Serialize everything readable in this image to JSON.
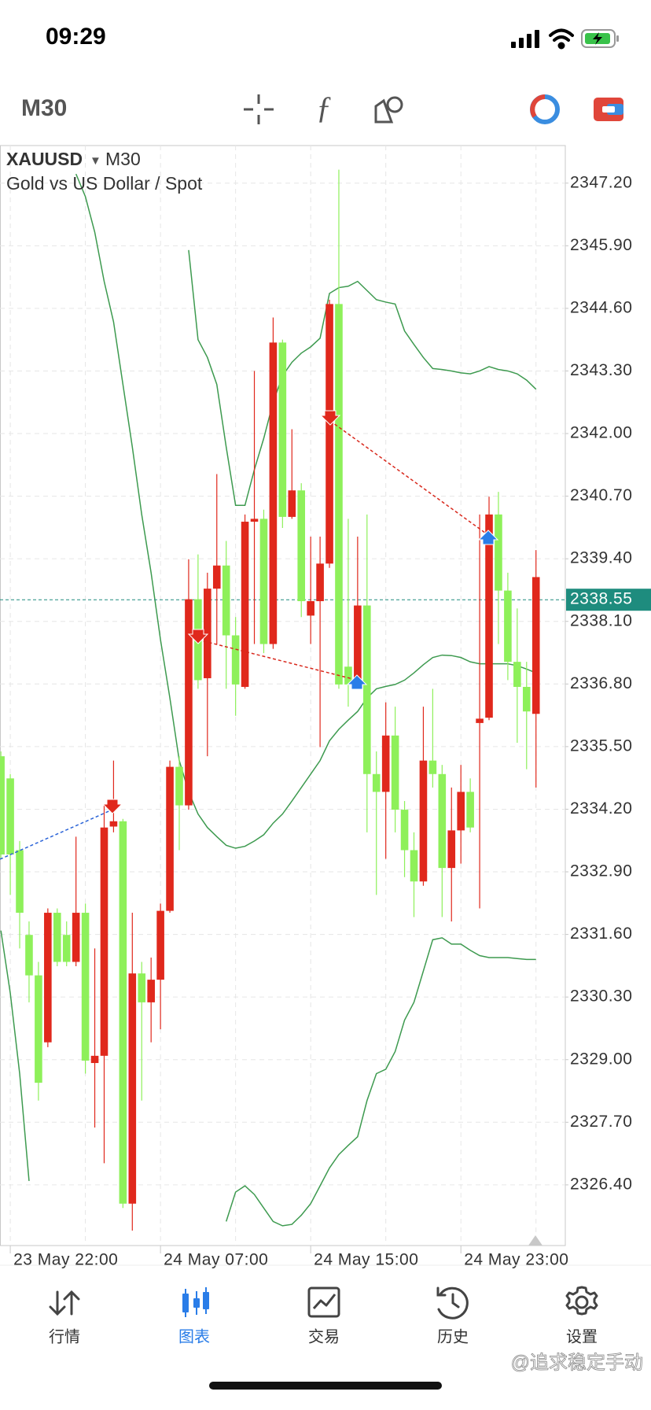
{
  "status_bar": {
    "time": "09:29"
  },
  "toolbar": {
    "timeframe": "M30"
  },
  "chart_data": {
    "type": "candlestick",
    "symbol": "XAUUSD",
    "timeframe": "M30",
    "description": "Gold vs US Dollar / Spot",
    "bull_color": "#8ef05a",
    "bear_color": "#e0281c",
    "band_color": "#3d9a4f",
    "grid": true,
    "ylim": [
      2325.14,
      2347.98
    ],
    "yticks": [
      {
        "value": 2347.2,
        "label": "2347.20"
      },
      {
        "value": 2345.9,
        "label": "2345.90"
      },
      {
        "value": 2344.6,
        "label": "2344.60"
      },
      {
        "value": 2343.3,
        "label": "2343.30"
      },
      {
        "value": 2342,
        "label": "2342.00"
      },
      {
        "value": 2340.7,
        "label": "2340.70"
      },
      {
        "value": 2339.4,
        "label": "2339.40"
      },
      {
        "value": 2338.1,
        "label": "2338.10"
      },
      {
        "value": 2336.8,
        "label": "2336.80"
      },
      {
        "value": 2335.5,
        "label": "2335.50"
      },
      {
        "value": 2334.2,
        "label": "2334.20"
      },
      {
        "value": 2332.9,
        "label": "2332.90"
      },
      {
        "value": 2331.6,
        "label": "2331.60"
      },
      {
        "value": 2330.3,
        "label": "2330.30"
      },
      {
        "value": 2329,
        "label": "2329.00"
      },
      {
        "value": 2327.7,
        "label": "2327.70"
      },
      {
        "value": 2326.4,
        "label": "2326.40"
      }
    ],
    "current_price": {
      "value": 2338.55,
      "label": "2338.55"
    },
    "categories": [
      null,
      "23 May 22:00",
      null,
      null,
      null,
      null,
      null,
      null,
      null,
      null,
      null,
      null,
      null,
      null,
      null,
      null,
      null,
      "24 May 07:00",
      null,
      null,
      null,
      null,
      null,
      null,
      null,
      null,
      null,
      null,
      null,
      null,
      null,
      null,
      null,
      "24 May 15:00",
      null,
      null,
      null,
      null,
      null,
      null,
      null,
      null,
      null,
      null,
      null,
      null,
      null,
      null,
      null,
      "24 May 23:00",
      null,
      null,
      null,
      null,
      null,
      null,
      null,
      null
    ],
    "open": [
      2333.26,
      2333.26,
      2332.05,
      2330.75,
      2328.52,
      2332.05,
      2331.03,
      2331.03,
      2332.05,
      2328.98,
      2329.08,
      2333.82,
      2333.95,
      2326.01,
      2330.79,
      2330.19,
      2330.66,
      2332.09,
      2335.08,
      2334.28,
      2338.56,
      2336.88,
      2338.78,
      2339.26,
      2337.81,
      2336.79,
      2340.17,
      2340.23,
      2337.63,
      2343.89,
      2340.27,
      2340.82,
      2338.52,
      2338.52,
      2339.3,
      2344.69,
      2336.79,
      2336.79,
      2338.43,
      2334.93,
      2334.56,
      2335.73,
      2334.19,
      2333.35,
      2332.7,
      2335.21,
      2334.93,
      2332.98,
      2333.76,
      2334.56,
      2333.82,
      2336.08,
      2340.32,
      2338.74,
      2337.26,
      2336.74,
      2336.23,
      2339.02
    ],
    "high": [
      2335.4,
      2334.93,
      2333.54,
      2331.87,
      2331.03,
      2332.14,
      2332.14,
      2331.87,
      2333.63,
      2332.24,
      2331.31,
      2334.28,
      2335.21,
      2334.0,
      2332.05,
      2331.03,
      2331.12,
      2332.24,
      2335.21,
      2335.3,
      2339.39,
      2339.49,
      2339.11,
      2341.16,
      2339.77,
      2338.19,
      2340.32,
      2343.3,
      2340.42,
      2344.41,
      2343.95,
      2342.09,
      2340.97,
      2339.86,
      2339.86,
      2344.78,
      2347.48,
      2340.23,
      2339.86,
      2340.32,
      2335.4,
      2336.42,
      2336.33,
      2334.37,
      2333.72,
      2336.33,
      2336.7,
      2335.12,
      2334.65,
      2335.12,
      2334.84,
      2340.32,
      2340.69,
      2340.79,
      2339.11,
      2338.37,
      2337.26,
      2339.58
    ],
    "low": [
      2333.17,
      2332.42,
      2331.31,
      2330.19,
      2328.15,
      2329.26,
      2330.94,
      2330.94,
      2330.94,
      2328.71,
      2327.59,
      2326.85,
      2333.72,
      2325.92,
      2325.45,
      2328.15,
      2329.36,
      2329.63,
      2332.05,
      2333.35,
      2334.19,
      2336.7,
      2335.3,
      2337.63,
      2336.7,
      2336.14,
      2336.7,
      2337.63,
      2337.44,
      2337.53,
      2340.04,
      2340.23,
      2338.19,
      2337.63,
      2335.49,
      2339.21,
      2336.7,
      2336.33,
      2336.7,
      2333.72,
      2332.42,
      2333.17,
      2333.72,
      2332.79,
      2331.96,
      2332.61,
      2334.65,
      2331.96,
      2331.87,
      2333.07,
      2333.72,
      2332.14,
      2336.05,
      2337.63,
      2336.88,
      2335.58,
      2335.03,
      2334.65
    ],
    "close": [
      2335.3,
      2334.84,
      2333.35,
      2331.59,
      2330.75,
      2329.36,
      2332.05,
      2331.59,
      2331.03,
      2332.05,
      2328.93,
      2329.08,
      2333.84,
      2333.95,
      2326.01,
      2330.79,
      2330.19,
      2330.66,
      2332.09,
      2335.08,
      2334.28,
      2338.56,
      2336.92,
      2338.78,
      2339.26,
      2337.81,
      2336.74,
      2340.17,
      2340.23,
      2337.63,
      2343.89,
      2340.27,
      2340.82,
      2338.22,
      2338.52,
      2339.3,
      2344.69,
      2337.16,
      2336.79,
      2338.43,
      2334.93,
      2334.56,
      2335.73,
      2334.19,
      2333.35,
      2332.7,
      2335.21,
      2334.93,
      2332.98,
      2333.76,
      2334.56,
      2335.99,
      2336.1,
      2340.32,
      2338.74,
      2337.26,
      2336.74,
      2336.18
    ],
    "bands": {
      "upper": [
        null,
        null,
        null,
        null,
        null,
        null,
        null,
        null,
        null,
        null,
        null,
        null,
        null,
        null,
        null,
        null,
        null,
        null,
        null,
        null,
        2345.81,
        2343.95,
        2343.58,
        2343.02,
        2341.72,
        2340.51,
        2340.51,
        2341.25,
        2341.9,
        2342.65,
        2343.2,
        2343.48,
        2343.67,
        2343.8,
        2343.98,
        2344.91,
        2345.03,
        2345.06,
        2345.16,
        2344.97,
        2344.78,
        2344.73,
        2344.69,
        2344.13,
        2343.85,
        2343.58,
        2343.35,
        2343.33,
        2343.3,
        2343.26,
        2343.24,
        2343.3,
        2343.39,
        2343.33,
        2343.3,
        2343.24,
        2343.11,
        2342.92
      ],
      "middle": [
        null,
        null,
        null,
        null,
        null,
        null,
        null,
        null,
        2347.39,
        2346.92,
        2346.18,
        2345.16,
        2344.32,
        2343.02,
        2341.72,
        2340.32,
        2339.11,
        2337.72,
        2336.51,
        2335.21,
        2334.56,
        2334.1,
        2333.82,
        2333.63,
        2333.45,
        2333.39,
        2333.43,
        2333.54,
        2333.67,
        2333.91,
        2334.1,
        2334.37,
        2334.65,
        2334.93,
        2335.21,
        2335.62,
        2335.86,
        2336.05,
        2336.23,
        2336.51,
        2336.7,
        2336.75,
        2336.79,
        2336.88,
        2337.03,
        2337.2,
        2337.35,
        2337.4,
        2337.39,
        2337.35,
        2337.26,
        2337.22,
        2337.22,
        2337.22,
        2337.22,
        2337.18,
        2337.11,
        2337.03
      ],
      "lower": [
        2331.68,
        2330.38,
        2328.71,
        2326.48,
        null,
        null,
        null,
        null,
        null,
        null,
        null,
        null,
        null,
        null,
        null,
        null,
        null,
        null,
        null,
        null,
        null,
        null,
        null,
        null,
        2325.64,
        2326.25,
        2326.38,
        2326.2,
        2325.92,
        2325.64,
        2325.55,
        2325.58,
        2325.77,
        2326.01,
        2326.38,
        2326.75,
        2327.03,
        2327.22,
        2327.4,
        2328.15,
        2328.71,
        2328.8,
        2329.17,
        2329.82,
        2330.19,
        2330.84,
        2331.49,
        2331.53,
        2331.4,
        2331.4,
        2331.27,
        2331.16,
        2331.12,
        2331.12,
        2331.12,
        2331.1,
        2331.08,
        2331.08
      ]
    }
  },
  "nav": {
    "items": [
      "行情",
      "图表",
      "交易",
      "历史",
      "设置"
    ],
    "active": 1
  },
  "watermark": "@追求稳定手动"
}
